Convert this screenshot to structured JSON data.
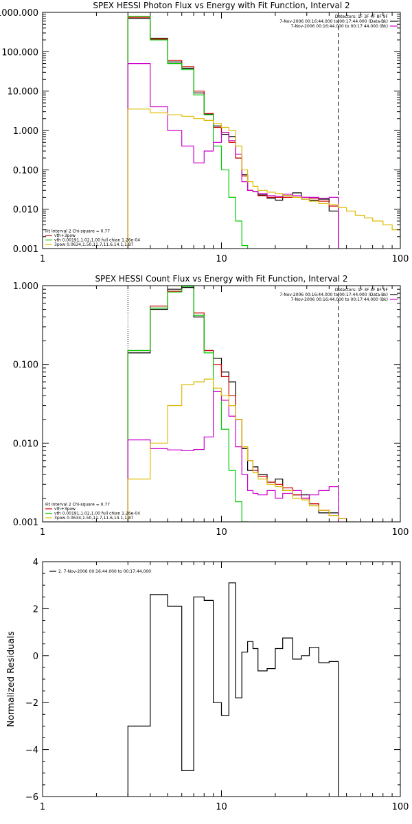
{
  "chart_data": [
    {
      "id": "photon",
      "type": "line",
      "title": "SPEX HESSI Photon Flux vs Energy with Fit Function, Interval 2",
      "xscale": "log",
      "yscale": "log",
      "xlim": [
        1,
        100
      ],
      "ylim": [
        0.001,
        1000
      ],
      "xticks": [
        {
          "v": 1,
          "label": "1"
        },
        {
          "v": 10,
          "label": "10"
        },
        {
          "v": 100,
          "label": "100"
        }
      ],
      "yticks": [
        {
          "v": 0.001,
          "label": "0.001"
        },
        {
          "v": 0.01,
          "label": "0.010"
        },
        {
          "v": 0.1,
          "label": "0.100"
        },
        {
          "v": 1,
          "label": "1.000"
        },
        {
          "v": 10,
          "label": "10.000"
        },
        {
          "v": 100,
          "label": "100.000"
        },
        {
          "v": 1000,
          "label": "1000.000"
        }
      ],
      "vlines": [
        {
          "x": 3.0,
          "color": "#000000",
          "dash": "1,2"
        },
        {
          "x": 45,
          "color": "#000000",
          "dash": "6,4"
        }
      ],
      "legend_right": [
        {
          "text": "Detectors: 1F 3F 4F 8F 9F",
          "color": null
        },
        {
          "text": "7-Nov-2006 00:16:44.000 to 00:17:44.000 (Data-Bk)",
          "color": "#000000"
        },
        {
          "text": "7-Nov-2006 00:16:44.000 to 00:17:44.000 (Bk)",
          "color": "#cc00cc"
        }
      ],
      "legend_left": [
        {
          "text": "Fit Interval 2   Chi-square = 0.77",
          "color": null
        },
        {
          "text": "vth+3pow",
          "color": "#cc0000"
        },
        {
          "text": "vth 0.00191,1.02,1.00  full chian 1.26e-04",
          "color": "#00cc00"
        },
        {
          "text": "3pow 0.0634,1.50,11.7,11.6,14.1,1.87",
          "color": "#ddbb00"
        }
      ],
      "edges": [
        3,
        4,
        5,
        6,
        7,
        8,
        9,
        10,
        11,
        12,
        13,
        14,
        15,
        16,
        18,
        20,
        22,
        25,
        28,
        31,
        35,
        40,
        45,
        50,
        56,
        63,
        70,
        80,
        90,
        100
      ],
      "series": [
        {
          "color": "#000000",
          "values": [
            700,
            220,
            55,
            38,
            9,
            2.6,
            1.3,
            0.8,
            0.7,
            0.2,
            0.075,
            0.03,
            0.028,
            0.023,
            0.019,
            0.017,
            0.022,
            0.026,
            0.018,
            0.017,
            0.018,
            0.009,
            null,
            null,
            null,
            null,
            null,
            null,
            null
          ]
        },
        {
          "color": "#cc0000",
          "values": [
            750,
            210,
            60,
            42,
            10,
            2.7,
            1.2,
            0.9,
            0.5,
            0.2,
            0.07,
            0.03,
            0.028,
            0.022,
            0.02,
            0.02,
            0.02,
            0.02,
            0.02,
            0.019,
            0.016,
            0.012,
            null,
            null,
            null,
            null,
            null,
            null,
            null
          ]
        },
        {
          "color": "#00cc00",
          "values": [
            800,
            200,
            50,
            35,
            8,
            2.5,
            0.4,
            0.1,
            0.02,
            0.005,
            0.0012,
            null,
            null,
            null,
            null,
            null,
            null,
            null,
            null,
            null,
            null,
            null,
            null,
            null,
            null,
            null,
            null,
            null,
            null
          ]
        },
        {
          "color": "#cc00cc",
          "values": [
            50,
            4,
            1,
            0.4,
            0.15,
            0.3,
            0.5,
            0.9,
            0.55,
            0.25,
            0.05,
            0.03,
            0.028,
            0.025,
            0.022,
            0.021,
            0.024,
            0.022,
            0.02,
            0.02,
            0.019,
            0.02,
            null,
            null,
            null,
            null,
            null,
            null,
            null
          ]
        },
        {
          "color": "#ddbb00",
          "values": [
            3.5,
            2.8,
            2.5,
            2.3,
            2,
            1.8,
            1.5,
            1.2,
            1,
            0.4,
            0.1,
            0.05,
            0.038,
            0.03,
            0.027,
            0.025,
            0.022,
            0.02,
            0.018,
            0.016,
            0.014,
            0.013,
            0.011,
            0.009,
            0.007,
            0.006,
            0.005,
            0.004,
            0.003
          ]
        }
      ]
    },
    {
      "id": "count",
      "type": "line",
      "title": "SPEX HESSI Count Flux vs Energy with Fit Function, Interval 2",
      "xscale": "log",
      "yscale": "log",
      "xlim": [
        1,
        100
      ],
      "ylim": [
        0.001,
        1
      ],
      "xticks": [
        {
          "v": 1,
          "label": "1"
        },
        {
          "v": 10,
          "label": "10"
        },
        {
          "v": 100,
          "label": "100"
        }
      ],
      "yticks": [
        {
          "v": 0.001,
          "label": "0.001"
        },
        {
          "v": 0.01,
          "label": "0.010"
        },
        {
          "v": 0.1,
          "label": "0.100"
        },
        {
          "v": 1,
          "label": "1.000"
        }
      ],
      "vlines": [
        {
          "x": 3.0,
          "color": "#000000",
          "dash": "1,2"
        },
        {
          "x": 45,
          "color": "#000000",
          "dash": "6,4"
        }
      ],
      "legend_right": [
        {
          "text": "Detectors: 1F 3F 4F 8F 9F",
          "color": null
        },
        {
          "text": "7-Nov-2006 00:16:44.000 to 00:17:44.000 (Data-Bk)",
          "color": "#000000"
        },
        {
          "text": "7-Nov-2006 00:16:44.000 to 00:17:44.000 (Bk)",
          "color": "#cc00cc"
        }
      ],
      "legend_left": [
        {
          "text": "Fit Interval 2   Chi-square = 0.77",
          "color": null
        },
        {
          "text": "vth+3pow",
          "color": "#cc0000"
        },
        {
          "text": "vth 0.00191,1.02,1.00  full chian 1.26e-04",
          "color": "#00cc00"
        },
        {
          "text": "3pow 0.0634,1.50,11.7,11.6,14.1,1.87",
          "color": "#ddbb00"
        }
      ],
      "edges": [
        3,
        4,
        5,
        6,
        7,
        8,
        9,
        10,
        11,
        12,
        13,
        14,
        15,
        16,
        18,
        20,
        22,
        25,
        28,
        31,
        35,
        40,
        45,
        50,
        56,
        63,
        70,
        80,
        90,
        100
      ],
      "series": [
        {
          "color": "#000000",
          "values": [
            0.14,
            0.5,
            0.9,
            0.95,
            0.4,
            0.15,
            0.12,
            0.08,
            0.06,
            0.02,
            0.0085,
            0.0045,
            0.005,
            0.004,
            0.0032,
            0.0035,
            0.0025,
            0.0022,
            0.0022,
            0.0017,
            0.0013,
            0.0013,
            null,
            null,
            null,
            null,
            null,
            null,
            null
          ]
        },
        {
          "color": "#cc0000",
          "values": [
            0.15,
            0.55,
            0.85,
            1.0,
            0.45,
            0.15,
            0.1,
            0.07,
            0.04,
            0.02,
            0.009,
            0.006,
            0.0045,
            0.0038,
            0.0032,
            0.003,
            0.0027,
            0.0022,
            0.002,
            0.0017,
            0.0014,
            0.0012,
            0.0011,
            null,
            null,
            null,
            null,
            null,
            null
          ]
        },
        {
          "color": "#00cc00",
          "values": [
            0.15,
            0.52,
            0.83,
            0.98,
            0.42,
            0.14,
            0.045,
            0.015,
            0.0045,
            0.0018,
            0.001,
            null,
            null,
            null,
            null,
            null,
            null,
            null,
            null,
            null,
            null,
            null,
            null,
            null,
            null,
            null,
            null,
            null,
            null
          ]
        },
        {
          "color": "#cc00cc",
          "values": [
            0.011,
            0.0085,
            0.0082,
            0.008,
            0.0083,
            0.012,
            0.045,
            0.035,
            0.022,
            0.009,
            0.004,
            0.0025,
            0.0023,
            0.0022,
            0.0025,
            0.002,
            0.0023,
            0.0025,
            0.002,
            0.0022,
            0.0025,
            0.0028,
            null,
            null,
            null,
            null,
            null,
            null,
            null
          ]
        },
        {
          "color": "#ddbb00",
          "values": [
            0.0035,
            0.01,
            0.03,
            0.055,
            0.06,
            0.065,
            0.05,
            0.04,
            0.03,
            0.02,
            0.009,
            0.006,
            0.0042,
            0.0035,
            0.003,
            0.0028,
            0.0025,
            0.002,
            0.0019,
            0.0016,
            0.0014,
            0.0012,
            0.0011,
            0.001,
            null,
            null,
            null,
            null,
            null
          ]
        }
      ]
    },
    {
      "id": "resid",
      "type": "line",
      "title": "",
      "xscale": "log",
      "yscale": "linear",
      "xlim": [
        1,
        100
      ],
      "ylim": [
        -6,
        4
      ],
      "ylabel": "Normalized Residuals",
      "xticks": [
        {
          "v": 1,
          "label": "1"
        },
        {
          "v": 10,
          "label": "10"
        },
        {
          "v": 100,
          "label": "100"
        }
      ],
      "yticks": [
        {
          "v": -6,
          "label": "−6"
        },
        {
          "v": -4,
          "label": "−4"
        },
        {
          "v": -2,
          "label": "−2"
        },
        {
          "v": 0,
          "label": "0"
        },
        {
          "v": 2,
          "label": "2"
        },
        {
          "v": 4,
          "label": "4"
        }
      ],
      "vlines": [],
      "legend_right": [],
      "legend_left": [],
      "legend_top_left": {
        "text": "2.  7-Nov-2006 00:16:44.000 to 00:17:44.000",
        "color": "#000000"
      },
      "edges": [
        3,
        4,
        5,
        6,
        7,
        8,
        9,
        10,
        11,
        12,
        13,
        14,
        15,
        16,
        18,
        20,
        22,
        25,
        28,
        31,
        35,
        40,
        45
      ],
      "series": [
        {
          "color": "#000000",
          "values": [
            -3.0,
            2.6,
            2.1,
            -4.9,
            2.5,
            2.35,
            -2.0,
            -2.55,
            3.1,
            -1.8,
            0.15,
            0.6,
            0.3,
            -0.65,
            -0.55,
            0.3,
            0.75,
            -0.15,
            0.0,
            0.35,
            -0.3,
            -0.25
          ]
        }
      ]
    }
  ]
}
